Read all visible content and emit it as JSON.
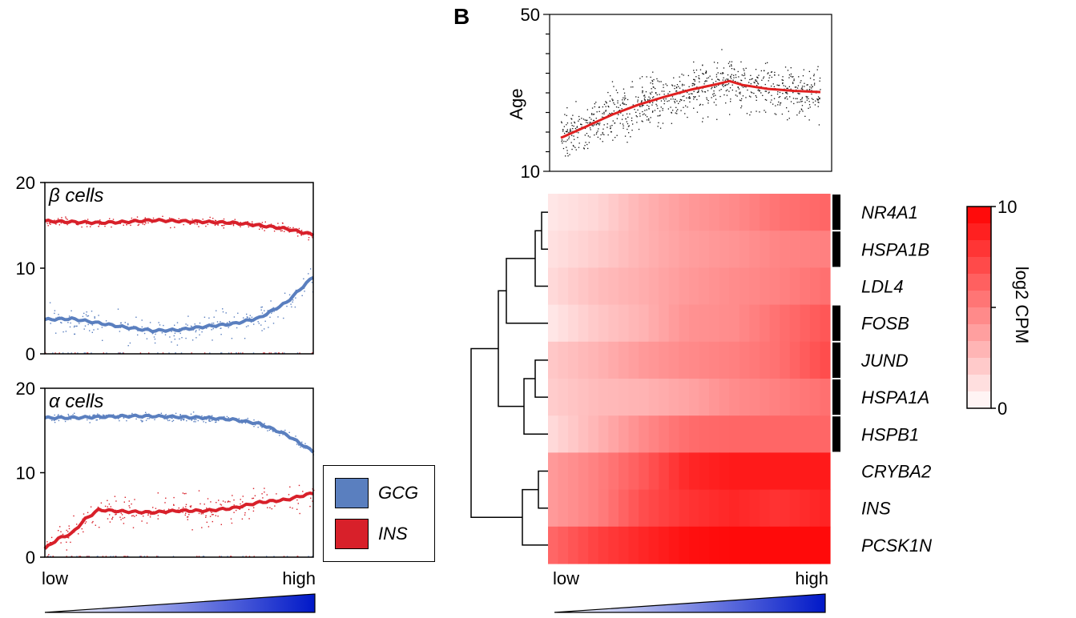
{
  "panel_label": "B",
  "colors": {
    "gcg": "#5a7fbf",
    "ins": "#d8202a",
    "trend": "#e02020",
    "heat_max": "#ff0000",
    "gradient_end": "#0018c8"
  },
  "legend": [
    {
      "label": "GCG",
      "color": "#5a7fbf"
    },
    {
      "label": "INS",
      "color": "#d8202a"
    }
  ],
  "chart_data": [
    {
      "type": "scatter",
      "title": "β cells",
      "xlabel": "",
      "x_ticks": [
        "low",
        "high"
      ],
      "ylim": [
        0,
        20
      ],
      "y_ticks": [
        "0",
        "10",
        "20"
      ],
      "series": [
        {
          "name": "INS",
          "x": [
            0,
            0.1,
            0.2,
            0.3,
            0.4,
            0.5,
            0.6,
            0.7,
            0.8,
            0.9,
            1.0
          ],
          "values": [
            15.5,
            15.4,
            15.3,
            15.4,
            15.6,
            15.5,
            15.4,
            15.3,
            15.0,
            14.6,
            13.9
          ]
        },
        {
          "name": "GCG",
          "x": [
            0,
            0.1,
            0.2,
            0.3,
            0.4,
            0.5,
            0.6,
            0.7,
            0.8,
            0.9,
            1.0
          ],
          "values": [
            4.0,
            4.1,
            3.6,
            3.1,
            2.7,
            2.8,
            3.2,
            3.5,
            4.2,
            6.0,
            9.0
          ]
        }
      ]
    },
    {
      "type": "scatter",
      "title": "α cells",
      "xlabel": "",
      "x_ticks": [
        "low",
        "high"
      ],
      "ylim": [
        0,
        20
      ],
      "y_ticks": [
        "0",
        "10",
        "20"
      ],
      "series": [
        {
          "name": "GCG",
          "x": [
            0,
            0.1,
            0.2,
            0.3,
            0.4,
            0.5,
            0.6,
            0.7,
            0.8,
            0.9,
            1.0
          ],
          "values": [
            16.5,
            16.5,
            16.6,
            16.7,
            16.7,
            16.6,
            16.5,
            16.3,
            15.8,
            14.5,
            12.5
          ]
        },
        {
          "name": "INS",
          "x": [
            0,
            0.05,
            0.1,
            0.15,
            0.2,
            0.3,
            0.4,
            0.5,
            0.6,
            0.7,
            0.8,
            0.9,
            1.0
          ],
          "values": [
            1.0,
            2.2,
            2.8,
            4.5,
            5.6,
            5.4,
            5.3,
            5.5,
            5.5,
            5.8,
            6.5,
            6.8,
            7.6
          ]
        }
      ]
    },
    {
      "type": "scatter",
      "title": "",
      "ylabel": "Age",
      "ylim": [
        10,
        50
      ],
      "y_ticks": [
        "10",
        "50"
      ],
      "series": [
        {
          "name": "",
          "x": [
            0,
            0.1,
            0.2,
            0.3,
            0.4,
            0.5,
            0.6,
            0.65,
            0.7,
            0.8,
            0.9,
            1.0
          ],
          "values": [
            18.5,
            21.5,
            24.5,
            27.0,
            29.0,
            30.8,
            32.2,
            33.0,
            32.0,
            31.0,
            30.5,
            30.2
          ]
        }
      ]
    },
    {
      "type": "heatmap",
      "x_ticks": [
        "low",
        "high"
      ],
      "colorbar": {
        "label": "log2 CPM",
        "min": "0",
        "max": "10"
      },
      "rows": [
        {
          "gene": "NR4A1",
          "marked": true,
          "values": [
            1.0,
            1.6,
            3.0,
            4.0,
            4.6,
            5.5,
            6.0
          ]
        },
        {
          "gene": "HSPA1B",
          "marked": true,
          "values": [
            1.2,
            2.0,
            3.0,
            3.8,
            4.2,
            4.8,
            5.0
          ]
        },
        {
          "gene": "LDL4",
          "marked": false,
          "values": [
            1.5,
            2.6,
            3.2,
            4.0,
            4.5,
            4.9,
            5.6
          ]
        },
        {
          "gene": "FOSB",
          "marked": true,
          "values": [
            1.0,
            2.2,
            3.0,
            4.3,
            4.5,
            5.6,
            6.6
          ]
        },
        {
          "gene": "JUND",
          "marked": true,
          "values": [
            2.2,
            3.0,
            4.0,
            4.6,
            5.0,
            5.6,
            7.0
          ]
        },
        {
          "gene": "HSPA1A",
          "marked": true,
          "values": [
            2.0,
            2.7,
            3.0,
            3.6,
            4.5,
            5.0,
            5.6
          ]
        },
        {
          "gene": "HSPB1",
          "marked": true,
          "values": [
            1.5,
            3.0,
            4.6,
            5.8,
            6.0,
            6.0,
            6.0
          ]
        },
        {
          "gene": "CRYBA2",
          "marked": false,
          "values": [
            4.0,
            5.0,
            6.5,
            8.5,
            9.0,
            9.0,
            9.0
          ]
        },
        {
          "gene": "INS",
          "marked": false,
          "values": [
            4.0,
            5.0,
            7.0,
            8.0,
            8.5,
            8.0,
            8.6
          ]
        },
        {
          "gene": "PCSK1N",
          "marked": false,
          "values": [
            6.0,
            7.5,
            8.5,
            9.4,
            9.6,
            9.6,
            9.6
          ]
        }
      ]
    }
  ]
}
